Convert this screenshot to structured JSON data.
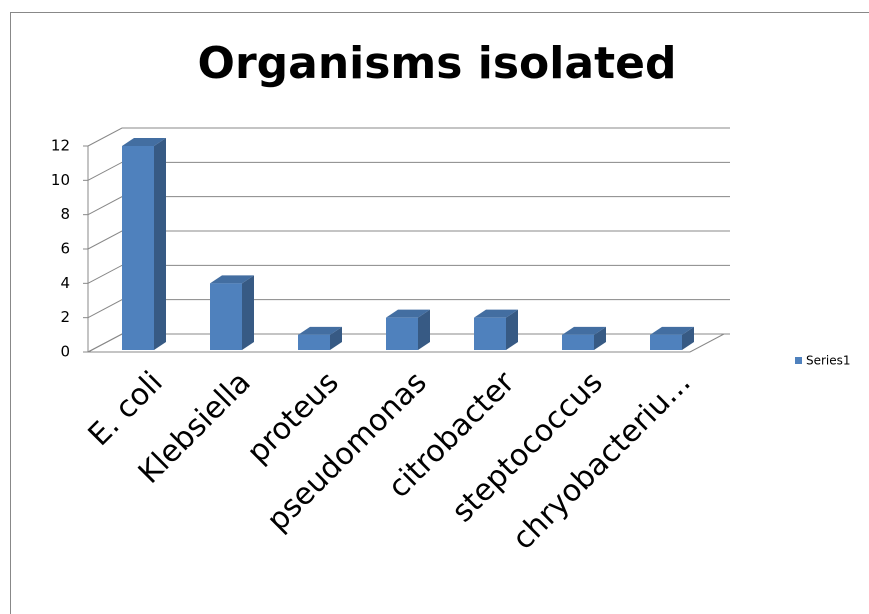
{
  "chart_data": {
    "type": "bar3d",
    "title": "Organisms isolated",
    "categories": [
      "E. coli",
      "Klebsiella",
      "proteus",
      "pseudomonas",
      "citrobacter",
      "steptococcus",
      "chryobacteriu..."
    ],
    "series": [
      {
        "name": "Series1",
        "color": "#4f81bd",
        "values": [
          12,
          4,
          1,
          2,
          2,
          1,
          1
        ]
      }
    ],
    "ylim": [
      0,
      12
    ],
    "yticks": [
      0,
      2,
      4,
      6,
      8,
      10,
      12
    ],
    "grid": true,
    "legend": "right"
  }
}
